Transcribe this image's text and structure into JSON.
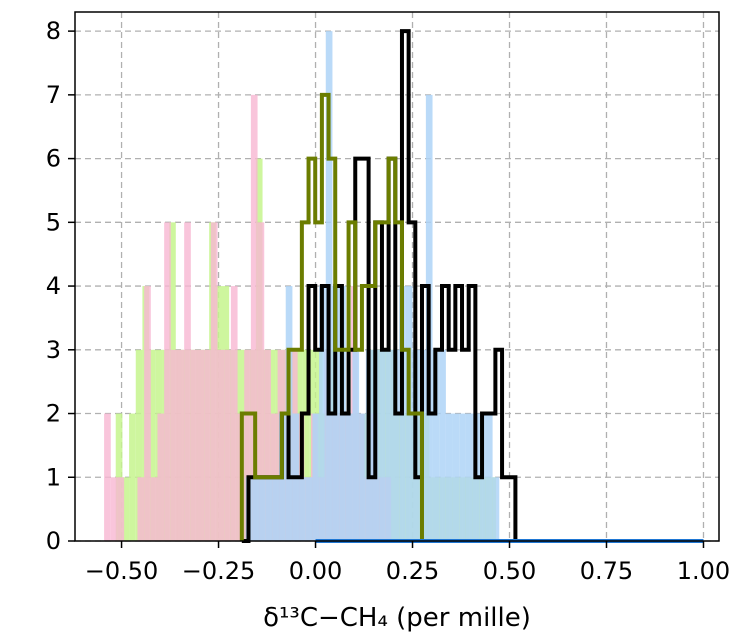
{
  "chart_data": {
    "type": "histogram",
    "xlabel": "δ¹³C−CH₄ (per mille)",
    "ylabel": "",
    "title": "",
    "xlim": [
      -0.62,
      1.04
    ],
    "ylim": [
      0,
      8.3
    ],
    "grid": true,
    "x_ticks": [
      -0.5,
      -0.25,
      0.0,
      0.25,
      0.5,
      0.75,
      1.0
    ],
    "x_tick_labels": [
      "−0.50",
      "−0.25",
      "0.00",
      "0.25",
      "0.50",
      "0.75",
      "1.00"
    ],
    "y_ticks": [
      0,
      1,
      2,
      3,
      4,
      5,
      6,
      7,
      8
    ],
    "y_tick_labels": [
      "0",
      "1",
      "2",
      "3",
      "4",
      "5",
      "6",
      "7",
      "8"
    ],
    "series": [
      {
        "style": "filled",
        "color": "#c6f58d",
        "opacity": 0.85,
        "bin_width": 0.0172,
        "bin_start": -0.515,
        "counts": [
          2,
          1,
          2,
          3,
          4,
          3,
          3,
          3,
          5,
          3,
          3,
          3,
          3,
          3,
          5,
          4,
          4,
          3,
          3,
          3,
          3,
          6,
          3,
          3,
          3,
          3,
          3,
          3,
          3,
          3,
          3,
          2,
          3,
          2,
          2,
          2,
          2,
          2,
          3,
          3,
          3,
          3,
          2,
          2,
          2,
          2,
          2,
          1,
          1,
          1,
          1,
          1,
          1,
          1,
          1,
          1,
          1
        ]
      },
      {
        "style": "filled",
        "color": "#f7b6d2",
        "opacity": 0.8,
        "bin_width": 0.0172,
        "bin_start": -0.545,
        "counts": [
          2,
          1,
          1,
          0,
          0,
          1,
          4,
          1,
          2,
          5,
          3,
          3,
          5,
          3,
          3,
          3,
          5,
          3,
          3,
          4,
          2,
          3,
          7,
          5,
          3,
          2,
          3,
          3,
          3,
          2,
          1,
          2,
          1,
          3,
          2,
          2,
          2,
          4,
          2,
          1,
          2,
          1,
          1
        ]
      },
      {
        "style": "filled",
        "color": "#aed4f7",
        "opacity": 0.85,
        "bin_width": 0.0172,
        "bin_start": -0.18,
        "counts": [
          1,
          1,
          1,
          1,
          1,
          2,
          4,
          2,
          1,
          1,
          2,
          4,
          8,
          4,
          4,
          2,
          3,
          2,
          3,
          3,
          3,
          3,
          3,
          4,
          4,
          3,
          3,
          7,
          3,
          3,
          2,
          2,
          2,
          2,
          2,
          2,
          2,
          1
        ]
      },
      {
        "style": "step",
        "color": "#000000",
        "linewidth": 4,
        "bin_width": 0.0172,
        "bin_start": -0.19,
        "counts": [
          0,
          1,
          1,
          1,
          1,
          1,
          2,
          1,
          1,
          2,
          4,
          3,
          4,
          2,
          4,
          2,
          3,
          6,
          6,
          1,
          5,
          3,
          6,
          2,
          8,
          5,
          1,
          4,
          2,
          3,
          4,
          3,
          4,
          3,
          4,
          1,
          2,
          2,
          3,
          1,
          1,
          0
        ]
      },
      {
        "style": "step",
        "color": "#6b7d00",
        "linewidth": 4,
        "bin_width": 0.0172,
        "bin_start": -0.19,
        "counts": [
          2,
          2,
          1,
          1,
          1,
          1,
          2,
          3,
          3,
          5,
          6,
          5,
          7,
          6,
          3,
          3,
          5,
          3,
          4,
          4,
          5,
          5,
          6,
          5,
          3,
          2,
          2
        ]
      },
      {
        "style": "line",
        "color": "#1f77d4",
        "linewidth": 4,
        "x": [
          0.0,
          1.0
        ],
        "y": [
          0,
          0
        ]
      }
    ]
  }
}
